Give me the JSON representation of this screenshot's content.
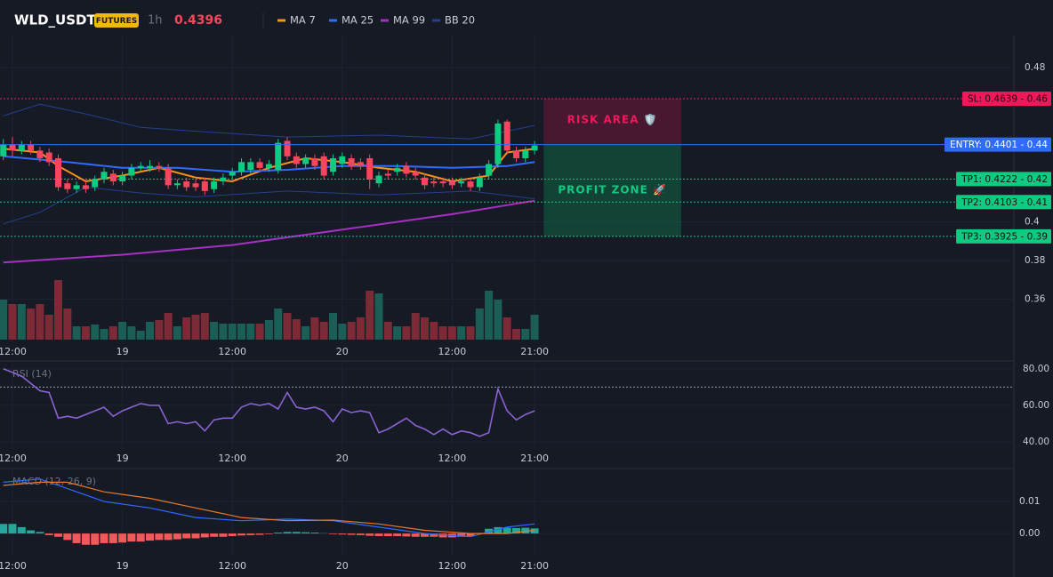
{
  "chart_data": [
    {
      "type": "candlestick",
      "title": "WLD_USDT",
      "badge": "FUTURES",
      "interval": "1h",
      "last_price": 0.4396,
      "up_color": "#0ecb81",
      "down_color": "#f6465d",
      "vol_up_color": "#1b5e55",
      "vol_down_color": "#7d2a37",
      "x": [
        -1,
        0,
        1,
        2,
        3,
        4,
        5,
        6,
        7,
        8,
        9,
        10,
        11,
        12,
        13,
        14,
        15,
        16,
        17,
        18,
        19,
        20,
        21,
        22,
        23,
        24,
        25,
        26,
        27,
        28,
        29,
        30,
        31,
        32,
        33,
        34,
        35,
        36,
        37,
        38,
        39,
        40,
        41,
        42,
        43,
        44,
        45,
        46,
        47,
        48,
        49,
        50,
        51,
        52,
        53,
        54,
        55,
        56,
        57
      ],
      "open": [
        0.434,
        0.44,
        0.437,
        0.44,
        0.437,
        0.436,
        0.433,
        0.42,
        0.417,
        0.419,
        0.418,
        0.422,
        0.425,
        0.421,
        0.424,
        0.428,
        0.428,
        0.429,
        0.428,
        0.419,
        0.421,
        0.42,
        0.421,
        0.417,
        0.421,
        0.424,
        0.426,
        0.427,
        0.431,
        0.428,
        0.427,
        0.442,
        0.434,
        0.43,
        0.433,
        0.434,
        0.426,
        0.43,
        0.433,
        0.431,
        0.433,
        0.42,
        0.425,
        0.426,
        0.429,
        0.426,
        0.423,
        0.421,
        0.421,
        0.421,
        0.42,
        0.421,
        0.418,
        0.424,
        0.43,
        0.452,
        0.437,
        0.433,
        0.437
      ],
      "high": [
        0.443,
        0.444,
        0.442,
        0.442,
        0.439,
        0.438,
        0.435,
        0.422,
        0.421,
        0.421,
        0.424,
        0.428,
        0.427,
        0.426,
        0.43,
        0.431,
        0.432,
        0.431,
        0.43,
        0.422,
        0.423,
        0.422,
        0.423,
        0.423,
        0.425,
        0.428,
        0.433,
        0.433,
        0.433,
        0.432,
        0.443,
        0.444,
        0.436,
        0.435,
        0.435,
        0.436,
        0.435,
        0.436,
        0.435,
        0.433,
        0.435,
        0.426,
        0.427,
        0.43,
        0.431,
        0.428,
        0.425,
        0.423,
        0.423,
        0.423,
        0.423,
        0.423,
        0.425,
        0.432,
        0.453,
        0.453,
        0.439,
        0.439,
        0.442
      ],
      "low": [
        0.432,
        0.434,
        0.435,
        0.435,
        0.431,
        0.429,
        0.416,
        0.415,
        0.415,
        0.415,
        0.416,
        0.42,
        0.419,
        0.419,
        0.422,
        0.426,
        0.426,
        0.426,
        0.417,
        0.417,
        0.416,
        0.416,
        0.414,
        0.415,
        0.419,
        0.422,
        0.424,
        0.425,
        0.426,
        0.426,
        0.425,
        0.432,
        0.428,
        0.428,
        0.427,
        0.422,
        0.424,
        0.428,
        0.427,
        0.427,
        0.417,
        0.418,
        0.422,
        0.424,
        0.423,
        0.422,
        0.417,
        0.418,
        0.418,
        0.417,
        0.418,
        0.416,
        0.416,
        0.422,
        0.428,
        0.435,
        0.431,
        0.431,
        0.435
      ],
      "close": [
        0.44,
        0.437,
        0.44,
        0.437,
        0.433,
        0.431,
        0.418,
        0.417,
        0.419,
        0.417,
        0.422,
        0.426,
        0.421,
        0.424,
        0.428,
        0.429,
        0.429,
        0.428,
        0.419,
        0.42,
        0.418,
        0.418,
        0.416,
        0.421,
        0.423,
        0.426,
        0.431,
        0.431,
        0.428,
        0.43,
        0.441,
        0.434,
        0.43,
        0.433,
        0.429,
        0.424,
        0.433,
        0.434,
        0.429,
        0.429,
        0.422,
        0.424,
        0.424,
        0.428,
        0.425,
        0.424,
        0.419,
        0.42,
        0.42,
        0.419,
        0.421,
        0.418,
        0.423,
        0.43,
        0.451,
        0.437,
        0.433,
        0.437,
        0.4396
      ],
      "volume": [
        45,
        40,
        40,
        35,
        40,
        28,
        67,
        35,
        15,
        15,
        17,
        12,
        15,
        20,
        15,
        10,
        20,
        22,
        30,
        15,
        25,
        28,
        30,
        20,
        18,
        18,
        18,
        18,
        18,
        22,
        35,
        30,
        23,
        15,
        25,
        20,
        30,
        18,
        20,
        25,
        55,
        52,
        20,
        15,
        15,
        30,
        25,
        20,
        15,
        15,
        15,
        15,
        35,
        55,
        45,
        25,
        12,
        12,
        28
      ],
      "volume_ylim": [
        0,
        100
      ],
      "series": [
        {
          "name": "MA 7",
          "color": "#f7931a",
          "x": [
            -1,
            3,
            5,
            8,
            12,
            16,
            20,
            24,
            28,
            32,
            36,
            40,
            44,
            48,
            52,
            54,
            57
          ],
          "values": [
            0.438,
            0.436,
            0.429,
            0.421,
            0.424,
            0.428,
            0.423,
            0.421,
            0.428,
            0.433,
            0.431,
            0.428,
            0.426,
            0.421,
            0.424,
            0.436,
            0.438
          ]
        },
        {
          "name": "MA 25",
          "color": "#2f6bff",
          "x": [
            -1,
            6,
            12,
            18,
            24,
            30,
            36,
            42,
            48,
            54,
            57
          ],
          "values": [
            0.434,
            0.431,
            0.428,
            0.428,
            0.426,
            0.427,
            0.429,
            0.429,
            0.428,
            0.429,
            0.431
          ]
        },
        {
          "name": "MA 99",
          "color": "#a62fc4",
          "x": [
            -1,
            12,
            24,
            36,
            48,
            57
          ],
          "values": [
            0.379,
            0.383,
            0.388,
            0.396,
            0.404,
            0.411
          ]
        },
        {
          "name": "BB 20",
          "color": "#24408f",
          "x": [
            -1,
            3,
            8,
            14,
            20,
            30,
            40,
            50,
            57
          ],
          "values": [
            0.455,
            0.461,
            0.456,
            0.449,
            0.447,
            0.444,
            0.445,
            0.443,
            0.45
          ],
          "lower": [
            0.399,
            0.405,
            0.418,
            0.415,
            0.413,
            0.416,
            0.414,
            0.416,
            0.412
          ]
        }
      ],
      "levels": [
        {
          "value": 0.4639,
          "label": "SL: 0.4639 - 0.46",
          "color": "#f0185a",
          "dashed": true
        },
        {
          "value": 0.4401,
          "label": "ENTRY: 0.4401 - 0.44",
          "color": "#2f6bff",
          "dashed": false
        },
        {
          "value": 0.4222,
          "label": "TP1: 0.4222 - 0.42",
          "color": "#0ecb81",
          "dashed": true
        },
        {
          "value": 0.4103,
          "label": "TP2: 0.4103 - 0.41",
          "color": "#0ecb81",
          "dashed": true
        },
        {
          "value": 0.3925,
          "label": "TP3: 0.3925 - 0.39",
          "color": "#0ecb81",
          "dashed": true
        }
      ],
      "zones": [
        {
          "label": "RISK AREA 🛡️",
          "from": 0.4401,
          "to": 0.4639,
          "x": [
            58,
            73
          ],
          "color": "#f0185a",
          "fill": "rgba(200,20,80,0.28)"
        },
        {
          "label": "PROFIT ZONE 🚀",
          "from": 0.3925,
          "to": 0.4401,
          "x": [
            58,
            73
          ],
          "color": "#0ecb81",
          "fill": "rgba(14,160,100,0.3)"
        }
      ],
      "xlim": [
        -1.36,
        109.32
      ],
      "ylim": [
        0.3376,
        0.4966
      ],
      "yticks": [
        0.48,
        0.4,
        0.38,
        0.36
      ],
      "xticks": [
        {
          "value": 0,
          "label": "12:00"
        },
        {
          "value": 12,
          "label": "19"
        },
        {
          "value": 24,
          "label": "12:00"
        },
        {
          "value": 36,
          "label": "20"
        },
        {
          "value": 48,
          "label": "12:00"
        },
        {
          "value": 57,
          "label": "21:00"
        }
      ]
    },
    {
      "type": "line",
      "title": "RSI (14)",
      "color": "#8a63d2",
      "x": [
        -1,
        0,
        1,
        2,
        3,
        4,
        5,
        6,
        7,
        8,
        9,
        10,
        11,
        12,
        13,
        14,
        15,
        16,
        17,
        18,
        19,
        20,
        21,
        22,
        23,
        24,
        25,
        26,
        27,
        28,
        29,
        30,
        31,
        32,
        33,
        34,
        35,
        36,
        37,
        38,
        39,
        40,
        41,
        42,
        43,
        44,
        45,
        46,
        47,
        48,
        49,
        50,
        51,
        52,
        53,
        54,
        55,
        56,
        57
      ],
      "values": [
        80,
        78,
        76,
        72,
        68,
        67,
        53,
        54,
        53,
        55,
        57,
        59,
        54,
        57,
        59,
        61,
        60,
        60,
        50,
        51,
        50,
        51,
        46,
        52,
        53,
        53,
        59,
        61,
        60,
        61,
        58,
        67,
        59,
        58,
        59,
        57,
        51,
        58,
        56,
        57,
        56,
        45,
        47,
        50,
        53,
        49,
        47,
        44,
        47,
        44,
        46,
        45,
        43,
        45,
        69,
        57,
        52,
        55,
        57
      ],
      "levels": [
        70
      ],
      "xlim": [
        -1.36,
        109.32
      ],
      "ylim": [
        36.1,
        84.3
      ],
      "yticks": [
        {
          "value": 80,
          "label": "80.00"
        },
        {
          "value": 60,
          "label": "60.00"
        },
        {
          "value": 40,
          "label": "40.00"
        }
      ],
      "xticks": [
        {
          "value": 0,
          "label": "12:00"
        },
        {
          "value": 12,
          "label": "19"
        },
        {
          "value": 24,
          "label": "12:00"
        },
        {
          "value": 36,
          "label": "20"
        },
        {
          "value": 48,
          "label": "12:00"
        },
        {
          "value": 57,
          "label": "21:00"
        }
      ]
    },
    {
      "type": "macd",
      "title": "MACD (12, 26, 9)",
      "pos_color": "#26a69a",
      "neg_color": "#f05a5a",
      "series": [
        {
          "color": "#2f6bff",
          "x": [
            -1,
            3,
            6,
            10,
            15,
            20,
            25,
            30,
            35,
            40,
            45,
            50,
            54,
            57
          ],
          "values": [
            0.016,
            0.017,
            0.014,
            0.01,
            0.008,
            0.005,
            0.004,
            0.0045,
            0.004,
            0.002,
            0.0,
            -0.001,
            0.002,
            0.003
          ]
        },
        {
          "color": "#e8792b",
          "x": [
            -1,
            3,
            6,
            10,
            15,
            20,
            25,
            30,
            35,
            40,
            45,
            50,
            54,
            57
          ],
          "values": [
            0.015,
            0.016,
            0.016,
            0.013,
            0.011,
            0.008,
            0.005,
            0.004,
            0.0042,
            0.003,
            0.001,
            0.0,
            0.0,
            0.001
          ]
        }
      ],
      "hist_x": [
        -1,
        0,
        1,
        2,
        3,
        4,
        5,
        6,
        7,
        8,
        9,
        10,
        11,
        12,
        13,
        14,
        15,
        16,
        17,
        18,
        19,
        20,
        21,
        22,
        23,
        24,
        25,
        26,
        27,
        28,
        29,
        30,
        31,
        32,
        33,
        34,
        35,
        36,
        37,
        38,
        39,
        40,
        41,
        42,
        43,
        44,
        45,
        46,
        47,
        48,
        49,
        50,
        51,
        52,
        53,
        54,
        55,
        56,
        57
      ],
      "hist": [
        0.003,
        0.003,
        0.002,
        0.001,
        0.0005,
        -0.0005,
        -0.001,
        -0.002,
        -0.003,
        -0.0035,
        -0.0035,
        -0.003,
        -0.003,
        -0.0028,
        -0.0025,
        -0.0025,
        -0.0022,
        -0.002,
        -0.002,
        -0.0018,
        -0.0015,
        -0.0015,
        -0.0012,
        -0.001,
        -0.001,
        -0.0008,
        -0.0006,
        -0.0005,
        -0.0004,
        -0.0002,
        0.0003,
        0.0005,
        0.0005,
        0.0004,
        0.0003,
        0.0001,
        -0.0002,
        -0.0003,
        -0.0004,
        -0.0005,
        -0.0007,
        -0.0008,
        -0.0008,
        -0.0008,
        -0.0009,
        -0.001,
        -0.001,
        -0.001,
        -0.0012,
        -0.0012,
        -0.001,
        -0.0008,
        0.0002,
        0.0015,
        0.002,
        0.0018,
        0.0017,
        0.0018,
        0.0016
      ],
      "xlim": [
        -1.36,
        109.32
      ],
      "ylim": [
        -0.0069,
        0.02
      ],
      "yticks": [
        0.01,
        {
          "value": 0,
          "label": "0.00"
        }
      ],
      "xticks": [
        {
          "value": 0,
          "label": "12:00"
        },
        {
          "value": 12,
          "label": "19"
        },
        {
          "value": 24,
          "label": "12:00"
        },
        {
          "value": 36,
          "label": "20"
        },
        {
          "value": 48,
          "label": "12:00"
        },
        {
          "value": 57,
          "label": "21:00"
        }
      ]
    }
  ]
}
